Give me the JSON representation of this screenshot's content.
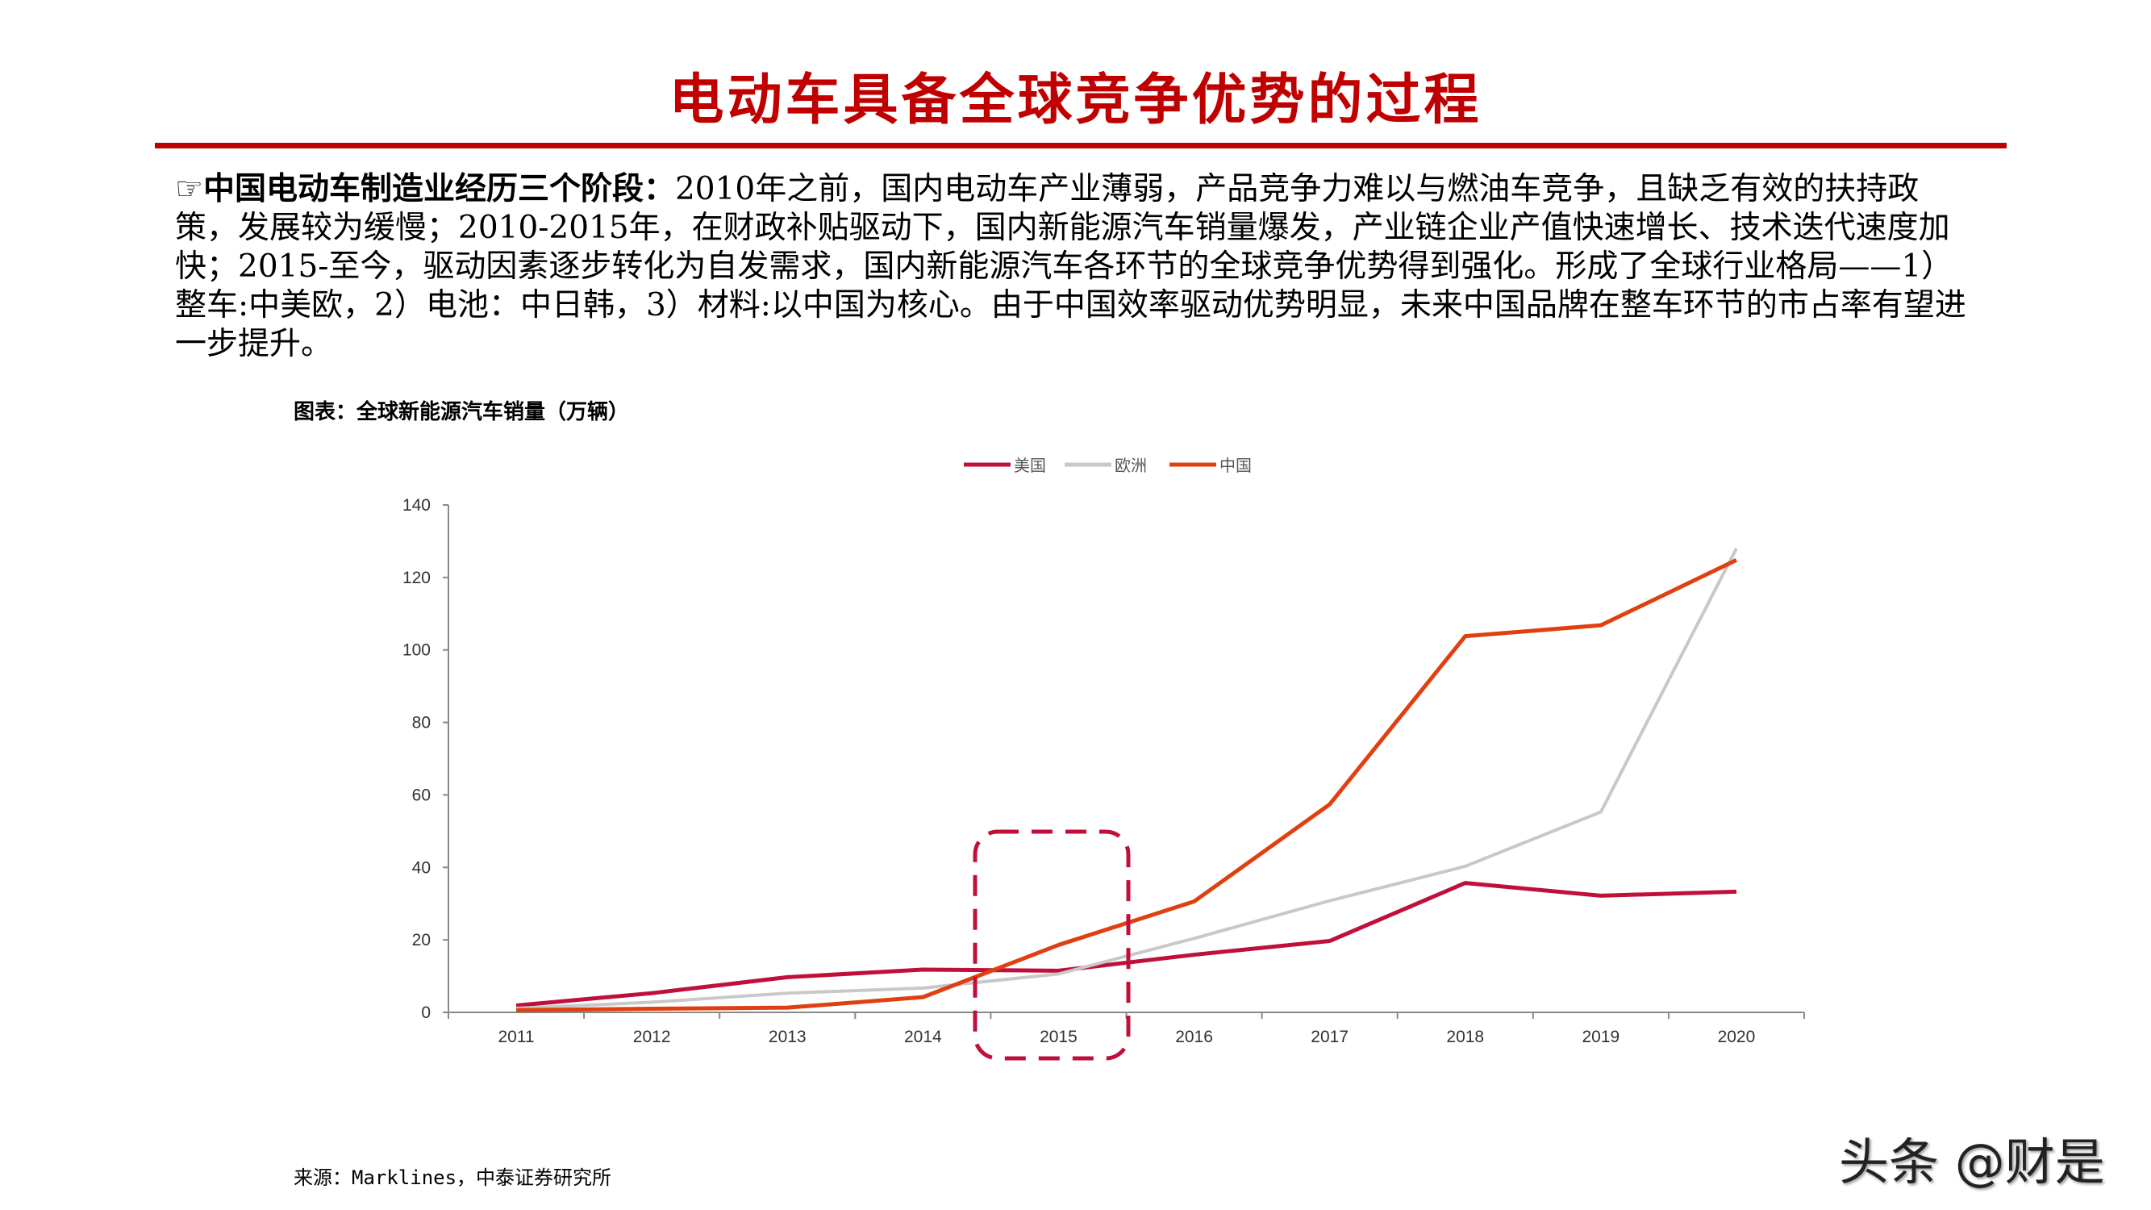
{
  "title": "电动车具备全球竞争优势的过程",
  "body": {
    "icon": "pointing-hand-icon",
    "lead": "中国电动车制造业经历三个阶段：",
    "text": "2010年之前，国内电动车产业薄弱，产品竞争力难以与燃油车竞争，且缺乏有效的扶持政策，发展较为缓慢；2010-2015年，在财政补贴驱动下，国内新能源汽车销量爆发，产业链企业产值快速增长、技术迭代速度加快；2015-至今，驱动因素逐步转化为自发需求，国内新能源汽车各环节的全球竞争优势得到强化。形成了全球行业格局——1）整车:中美欧，2）电池：中日韩，3）材料:以中国为核心。由于中国效率驱动优势明显，未来中国品牌在整车环节的市占率有望进一步提升。"
  },
  "caption": "图表：全球新能源汽车销量（万辆）",
  "source": "来源：Marklines，中泰证券研究所",
  "watermark": "头条 @财是",
  "chart_data": {
    "type": "line",
    "title": "",
    "categories": [
      "2011",
      "2012",
      "2013",
      "2014",
      "2015",
      "2016",
      "2017",
      "2018",
      "2019",
      "2020"
    ],
    "yticks": [
      "0",
      "20",
      "40",
      "60",
      "80",
      "100",
      "120",
      "140"
    ],
    "ylim": [
      0,
      140
    ],
    "grid": false,
    "legend_position": "top",
    "series": [
      {
        "name": "美国",
        "color": "#c0103a",
        "values": [
          1.9,
          5.3,
          9.7,
          11.8,
          11.5,
          15.9,
          19.7,
          35.7,
          32.2,
          33.3
        ]
      },
      {
        "name": "欧洲",
        "color": "#c8c8c8",
        "values": [
          1.1,
          2.8,
          5.3,
          6.7,
          10.6,
          20.4,
          30.8,
          40.3,
          55.3,
          128.0
        ]
      },
      {
        "name": "中国",
        "color": "#e04010",
        "values": [
          0.6,
          1.0,
          1.3,
          4.2,
          18.6,
          30.6,
          57.4,
          103.8,
          106.8,
          124.8
        ]
      }
    ],
    "highlight": {
      "category": "2015",
      "style": "dashed rounded box",
      "color": "#c0103a"
    }
  }
}
